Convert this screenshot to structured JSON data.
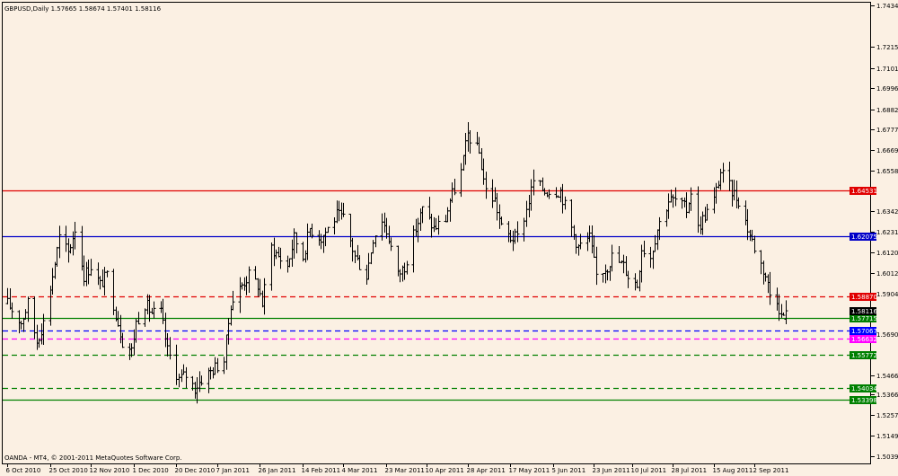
{
  "header": {
    "symbol_line": "GBPUSD,Daily  1.57665 1.58674 1.57401 1.58116"
  },
  "footer": {
    "copyright": "OANDA - MT4, © 2001-2011 MetaQuotes Software Corp."
  },
  "colors": {
    "background": "#fbf0e3",
    "frame": "#000000",
    "bar": "#000000"
  },
  "chart_data": {
    "type": "ohlc-bar",
    "title": "GBPUSD,Daily",
    "last_bar": {
      "open": 1.57665,
      "high": 1.58674,
      "low": 1.57401,
      "close": 1.58116
    },
    "ylim": [
      1.5,
      1.745
    ],
    "y_ticks": [
      "1.74340",
      "1.72150",
      "1.71010",
      "1.69960",
      "1.68820",
      "1.67770",
      "1.66690",
      "1.65580",
      "1.63420",
      "1.62310",
      "1.61200",
      "1.60120",
      "1.59040",
      "1.56900",
      "1.54660",
      "1.53660",
      "1.52570",
      "1.51490",
      "1.50390"
    ],
    "x_ticks": [
      "6 Oct 2010",
      "25 Oct 2010",
      "12 Nov 2010",
      "1 Dec 2010",
      "20 Dec 2010",
      "7 Jan 2011",
      "26 Jan 2011",
      "14 Feb 2011",
      "4 Mar 2011",
      "23 Mar 2011",
      "10 Apr 2011",
      "28 Apr 2011",
      "17 May 2011",
      "5 Jun 2011",
      "23 Jun 2011",
      "10 Jul 2011",
      "28 Jul 2011",
      "15 Aug 2011",
      "2 Sep 2011"
    ],
    "current_price": {
      "label": "1.58116",
      "value": 1.58116,
      "color": "#000000"
    },
    "levels": [
      {
        "label": "1.64531",
        "value": 1.64531,
        "color": "#e00000",
        "style": "solid"
      },
      {
        "label": "1.62075",
        "value": 1.62075,
        "color": "#0000c8",
        "style": "solid"
      },
      {
        "label": "1.58870",
        "value": 1.5887,
        "color": "#e00000",
        "style": "dashed"
      },
      {
        "label": "1.57715",
        "value": 1.57715,
        "color": "#008000",
        "style": "solid"
      },
      {
        "label": "1.57067",
        "value": 1.57067,
        "color": "#0000ff",
        "style": "dashed"
      },
      {
        "label": "1.56632",
        "value": 1.56632,
        "color": "#ff00ff",
        "style": "dashed"
      },
      {
        "label": "1.55772",
        "value": 1.55772,
        "color": "#008000",
        "style": "dashed"
      },
      {
        "label": "1.54034",
        "value": 1.54034,
        "color": "#008000",
        "style": "dashed"
      },
      {
        "label": "1.53398",
        "value": 1.53398,
        "color": "#008000",
        "style": "solid"
      }
    ],
    "keypoints": [
      [
        "2010-10-06",
        1.585
      ],
      [
        "2010-10-12",
        1.575
      ],
      [
        "2010-10-15",
        1.585
      ],
      [
        "2010-10-19",
        1.565
      ],
      [
        "2010-10-22",
        1.575
      ],
      [
        "2010-10-26",
        1.6
      ],
      [
        "2010-10-29",
        1.62
      ],
      [
        "2010-11-02",
        1.612
      ],
      [
        "2010-11-05",
        1.625
      ],
      [
        "2010-11-09",
        1.6
      ],
      [
        "2010-11-12",
        1.605
      ],
      [
        "2010-11-16",
        1.595
      ],
      [
        "2010-11-19",
        1.6
      ],
      [
        "2010-11-23",
        1.58
      ],
      [
        "2010-11-26",
        1.565
      ],
      [
        "2010-11-30",
        1.56
      ],
      [
        "2010-12-02",
        1.575
      ],
      [
        "2010-12-06",
        1.585
      ],
      [
        "2010-12-09",
        1.58
      ],
      [
        "2010-12-13",
        1.58
      ],
      [
        "2010-12-16",
        1.56
      ],
      [
        "2010-12-21",
        1.545
      ],
      [
        "2010-12-24",
        1.547
      ],
      [
        "2010-12-28",
        1.54
      ],
      [
        "2010-12-31",
        1.545
      ],
      [
        "2011-01-05",
        1.55
      ],
      [
        "2011-01-10",
        1.555
      ],
      [
        "2011-01-13",
        1.585
      ],
      [
        "2011-01-18",
        1.595
      ],
      [
        "2011-01-21",
        1.6
      ],
      [
        "2011-01-25",
        1.595
      ],
      [
        "2011-01-27",
        1.585
      ],
      [
        "2011-01-31",
        1.615
      ],
      [
        "2011-02-03",
        1.61
      ],
      [
        "2011-02-07",
        1.605
      ],
      [
        "2011-02-10",
        1.62
      ],
      [
        "2011-02-14",
        1.61
      ],
      [
        "2011-02-17",
        1.625
      ],
      [
        "2011-02-22",
        1.62
      ],
      [
        "2011-02-25",
        1.625
      ],
      [
        "2011-03-01",
        1.632
      ],
      [
        "2011-03-04",
        1.63
      ],
      [
        "2011-03-09",
        1.61
      ],
      [
        "2011-03-14",
        1.6
      ],
      [
        "2011-03-17",
        1.62
      ],
      [
        "2011-03-21",
        1.63
      ],
      [
        "2011-03-24",
        1.62
      ],
      [
        "2011-03-28",
        1.6
      ],
      [
        "2011-03-31",
        1.605
      ],
      [
        "2011-04-05",
        1.625
      ],
      [
        "2011-04-08",
        1.635
      ],
      [
        "2011-04-13",
        1.625
      ],
      [
        "2011-04-18",
        1.63
      ],
      [
        "2011-04-20",
        1.64
      ],
      [
        "2011-04-25",
        1.655
      ],
      [
        "2011-04-28",
        1.675
      ],
      [
        "2011-05-03",
        1.665
      ],
      [
        "2011-05-06",
        1.645
      ],
      [
        "2011-05-10",
        1.64
      ],
      [
        "2011-05-13",
        1.625
      ],
      [
        "2011-05-17",
        1.62
      ],
      [
        "2011-05-20",
        1.62
      ],
      [
        "2011-05-24",
        1.635
      ],
      [
        "2011-05-27",
        1.65
      ],
      [
        "2011-06-01",
        1.645
      ],
      [
        "2011-06-06",
        1.645
      ],
      [
        "2011-06-08",
        1.645
      ],
      [
        "2011-06-13",
        1.625
      ],
      [
        "2011-06-16",
        1.615
      ],
      [
        "2011-06-21",
        1.62
      ],
      [
        "2011-06-24",
        1.6
      ],
      [
        "2011-06-29",
        1.605
      ],
      [
        "2011-07-01",
        1.61
      ],
      [
        "2011-07-06",
        1.605
      ],
      [
        "2011-07-08",
        1.6
      ],
      [
        "2011-07-12",
        1.595
      ],
      [
        "2011-07-14",
        1.615
      ],
      [
        "2011-07-18",
        1.61
      ],
      [
        "2011-07-21",
        1.625
      ],
      [
        "2011-07-26",
        1.64
      ],
      [
        "2011-07-29",
        1.64
      ],
      [
        "2011-08-03",
        1.635
      ],
      [
        "2011-08-05",
        1.645
      ],
      [
        "2011-08-08",
        1.625
      ],
      [
        "2011-08-10",
        1.63
      ],
      [
        "2011-08-15",
        1.64
      ],
      [
        "2011-08-18",
        1.655
      ],
      [
        "2011-08-23",
        1.645
      ],
      [
        "2011-08-26",
        1.64
      ],
      [
        "2011-08-30",
        1.625
      ],
      [
        "2011-09-02",
        1.615
      ],
      [
        "2011-09-07",
        1.6
      ],
      [
        "2011-09-09",
        1.59
      ],
      [
        "2011-09-12",
        1.588
      ],
      [
        "2011-09-14",
        1.578
      ],
      [
        "2011-09-16",
        1.58
      ]
    ]
  }
}
